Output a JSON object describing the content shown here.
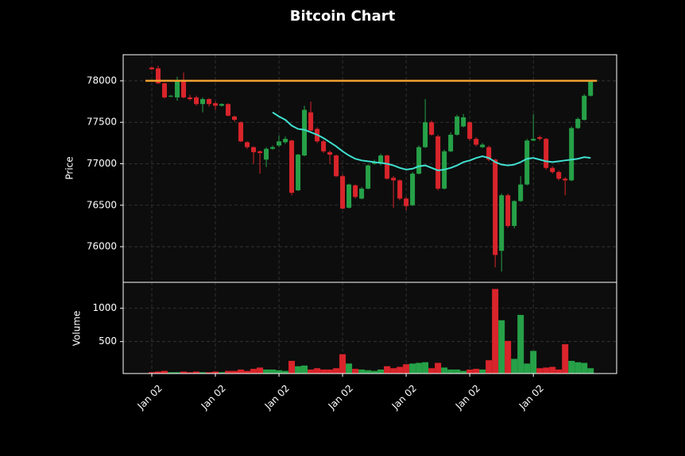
{
  "chart_data": {
    "type": "candlestick",
    "title": "Bitcoin Chart",
    "ylabel": "Price",
    "volume_label": "Volume",
    "up_color": "#26a148",
    "down_color": "#d9242b",
    "grid": true,
    "xlim": [
      -4.5,
      73.1
    ],
    "xticks": [
      {
        "value": 0,
        "label": "Jan 02"
      },
      {
        "value": 10,
        "label": "Jan 02"
      },
      {
        "value": 20,
        "label": "Jan 02"
      },
      {
        "value": 30,
        "label": "Jan 02"
      },
      {
        "value": 40,
        "label": "Jan 02"
      },
      {
        "value": 50,
        "label": "Jan 02"
      },
      {
        "value": 60,
        "label": "Jan 02"
      }
    ],
    "ylim": [
      75570,
      78315
    ],
    "yticks": [
      76000,
      76500,
      77000,
      77500,
      78000
    ],
    "volume_ylim": [
      20,
      1390
    ],
    "volume_yticks": [
      500,
      1000
    ],
    "open": [
      78160,
      78150,
      77970,
      77810,
      77800,
      78000,
      77800,
      77800,
      77720,
      77780,
      77730,
      77700,
      77720,
      77570,
      77500,
      77260,
      77200,
      77150,
      77050,
      77180,
      77220,
      77260,
      77280,
      76680,
      77100,
      77620,
      77420,
      77270,
      77140,
      77100,
      76850,
      76470,
      76740,
      76580,
      76700,
      77000,
      77000,
      77100,
      76830,
      76800,
      76580,
      76500,
      76880,
      77200,
      77500,
      77330,
      76700,
      77150,
      77350,
      77450,
      77500,
      77300,
      77200,
      77200,
      77050,
      75950,
      76620,
      76250,
      76550,
      76750,
      77280,
      77320,
      77300,
      76950,
      76900,
      76820,
      76800,
      77430,
      77530,
      77820
    ],
    "high": [
      78170,
      78180,
      77980,
      77830,
      78050,
      78100,
      77830,
      77820,
      77800,
      77790,
      77750,
      77730,
      77730,
      77580,
      77510,
      77270,
      77210,
      77160,
      77200,
      77220,
      77340,
      77330,
      77290,
      77120,
      77700,
      77750,
      77440,
      77290,
      77160,
      77110,
      76870,
      76760,
      76750,
      76720,
      76990,
      77050,
      77120,
      77110,
      76850,
      76810,
      76600,
      76900,
      77220,
      77780,
      77520,
      77350,
      77170,
      77380,
      77590,
      77600,
      77510,
      77320,
      77250,
      77220,
      77060,
      76640,
      76640,
      76560,
      76850,
      77300,
      77600,
      77340,
      77310,
      76970,
      76920,
      76840,
      77450,
      77560,
      77840,
      78010
    ],
    "low": [
      78130,
      77960,
      77790,
      77800,
      77760,
      77790,
      77760,
      77700,
      77620,
      77690,
      77650,
      77690,
      77570,
      77510,
      77260,
      77180,
      77000,
      76880,
      76960,
      77170,
      77200,
      77240,
      76620,
      76670,
      77090,
      77390,
      77250,
      77130,
      77000,
      76840,
      76450,
      76460,
      76580,
      76570,
      76690,
      76990,
      76980,
      76810,
      76470,
      76560,
      76440,
      76490,
      76870,
      77190,
      77340,
      76680,
      76690,
      77140,
      77340,
      77440,
      77280,
      77210,
      77190,
      77030,
      75750,
      75700,
      76230,
      76220,
      76540,
      76740,
      77270,
      77280,
      76930,
      76880,
      76800,
      76620,
      76790,
      77420,
      77520,
      77810
    ],
    "close": [
      78140,
      77970,
      77800,
      77820,
      77990,
      77800,
      77780,
      77720,
      77780,
      77720,
      77700,
      77720,
      77580,
      77530,
      77270,
      77200,
      77140,
      77130,
      77180,
      77200,
      77270,
      77300,
      76650,
      77110,
      77650,
      77400,
      77270,
      77150,
      77110,
      76850,
      76460,
      76750,
      76600,
      76700,
      76980,
      77020,
      77100,
      76820,
      76800,
      76580,
      76490,
      76880,
      77200,
      77500,
      77350,
      76700,
      77150,
      77350,
      77570,
      77560,
      77300,
      77230,
      77230,
      77050,
      75900,
      76620,
      76250,
      76550,
      76750,
      77280,
      77300,
      77300,
      76950,
      76900,
      76820,
      76800,
      77430,
      77540,
      77820,
      78000
    ],
    "volume": [
      40,
      50,
      60,
      40,
      40,
      50,
      40,
      50,
      40,
      40,
      50,
      40,
      60,
      60,
      80,
      60,
      90,
      110,
      80,
      80,
      70,
      60,
      210,
      130,
      140,
      80,
      100,
      80,
      80,
      100,
      310,
      170,
      90,
      80,
      70,
      60,
      80,
      130,
      100,
      120,
      160,
      170,
      180,
      190,
      100,
      180,
      110,
      80,
      80,
      60,
      80,
      90,
      80,
      220,
      1290,
      820,
      510,
      240,
      900,
      170,
      360,
      100,
      110,
      120,
      80,
      460,
      210,
      190,
      180,
      100
    ],
    "ma": {
      "color": "#40e0d0",
      "values": [
        null,
        null,
        null,
        null,
        null,
        null,
        null,
        null,
        null,
        null,
        null,
        null,
        null,
        null,
        null,
        null,
        null,
        null,
        null,
        77620,
        77570,
        77530,
        77460,
        77420,
        77410,
        77380,
        77350,
        77310,
        77260,
        77210,
        77150,
        77100,
        77060,
        77040,
        77030,
        77020,
        77010,
        77000,
        76980,
        76950,
        76930,
        76940,
        76970,
        76980,
        76950,
        76920,
        76930,
        76950,
        76980,
        77020,
        77040,
        77070,
        77090,
        77070,
        77020,
        76990,
        76980,
        76990,
        77020,
        77060,
        77070,
        77050,
        77030,
        77020,
        77030,
        77040,
        77050,
        77060,
        77080,
        77070
      ]
    },
    "hline": {
      "value": 78000,
      "color": "#f0a030"
    }
  }
}
